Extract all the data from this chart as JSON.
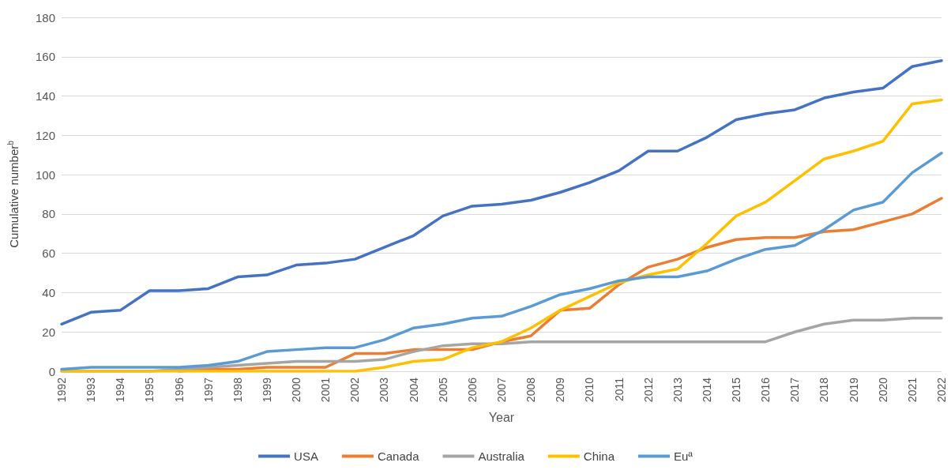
{
  "chart_data": {
    "type": "line",
    "xlabel": "Year",
    "ylabel": "Cumulative number$^{b}$",
    "categories": [
      "1992",
      "1993",
      "1994",
      "1995",
      "1996",
      "1997",
      "1998",
      "1999",
      "2000",
      "2001",
      "2002",
      "2003",
      "2004",
      "2005",
      "2006",
      "2007",
      "2008",
      "2009",
      "2010",
      "2011",
      "2012",
      "2013",
      "2014",
      "2015",
      "2016",
      "2017",
      "2018",
      "2019",
      "2020",
      "2021",
      "2022"
    ],
    "series": [
      {
        "name": "USA",
        "color": "#4472c4",
        "values": [
          24,
          30,
          31,
          41,
          41,
          42,
          48,
          49,
          54,
          55,
          57,
          63,
          69,
          79,
          84,
          85,
          87,
          91,
          96,
          102,
          112,
          112,
          119,
          128,
          131,
          133,
          139,
          142,
          144,
          155,
          158
        ]
      },
      {
        "name": "Canada",
        "color": "#ed7d31",
        "values": [
          null,
          null,
          null,
          null,
          0,
          1,
          1,
          2,
          2,
          2,
          9,
          9,
          11,
          11,
          11,
          15,
          18,
          31,
          32,
          44,
          53,
          57,
          63,
          67,
          68,
          68,
          71,
          72,
          76,
          80,
          88
        ]
      },
      {
        "name": "Australia",
        "color": "#a5a5a5",
        "values": [
          0,
          0,
          0,
          0,
          1,
          2,
          3,
          4,
          5,
          5,
          5,
          6,
          10,
          13,
          14,
          14,
          15,
          15,
          15,
          15,
          15,
          15,
          15,
          15,
          15,
          20,
          24,
          26,
          26,
          27,
          27
        ]
      },
      {
        "name": "China",
        "color": "#ffc000",
        "values": [
          0,
          0,
          0,
          0,
          0,
          0,
          0,
          0,
          0,
          0,
          0,
          2,
          5,
          6,
          12,
          15,
          22,
          31,
          38,
          45,
          49,
          52,
          65,
          79,
          86,
          97,
          108,
          112,
          117,
          136,
          138
        ]
      },
      {
        "name": "Euª",
        "color": "#5b9bd5",
        "values": [
          1,
          2,
          2,
          2,
          2,
          3,
          5,
          10,
          11,
          12,
          12,
          16,
          22,
          24,
          27,
          28,
          33,
          39,
          42,
          46,
          48,
          48,
          51,
          57,
          62,
          64,
          72,
          82,
          86,
          101,
          111
        ]
      }
    ],
    "ylim": [
      0,
      180
    ],
    "yticks": [
      0,
      20,
      40,
      60,
      80,
      100,
      120,
      140,
      160,
      180
    ],
    "grid": "y",
    "legend": "bottom",
    "marker": "none",
    "line_style": "solid"
  }
}
